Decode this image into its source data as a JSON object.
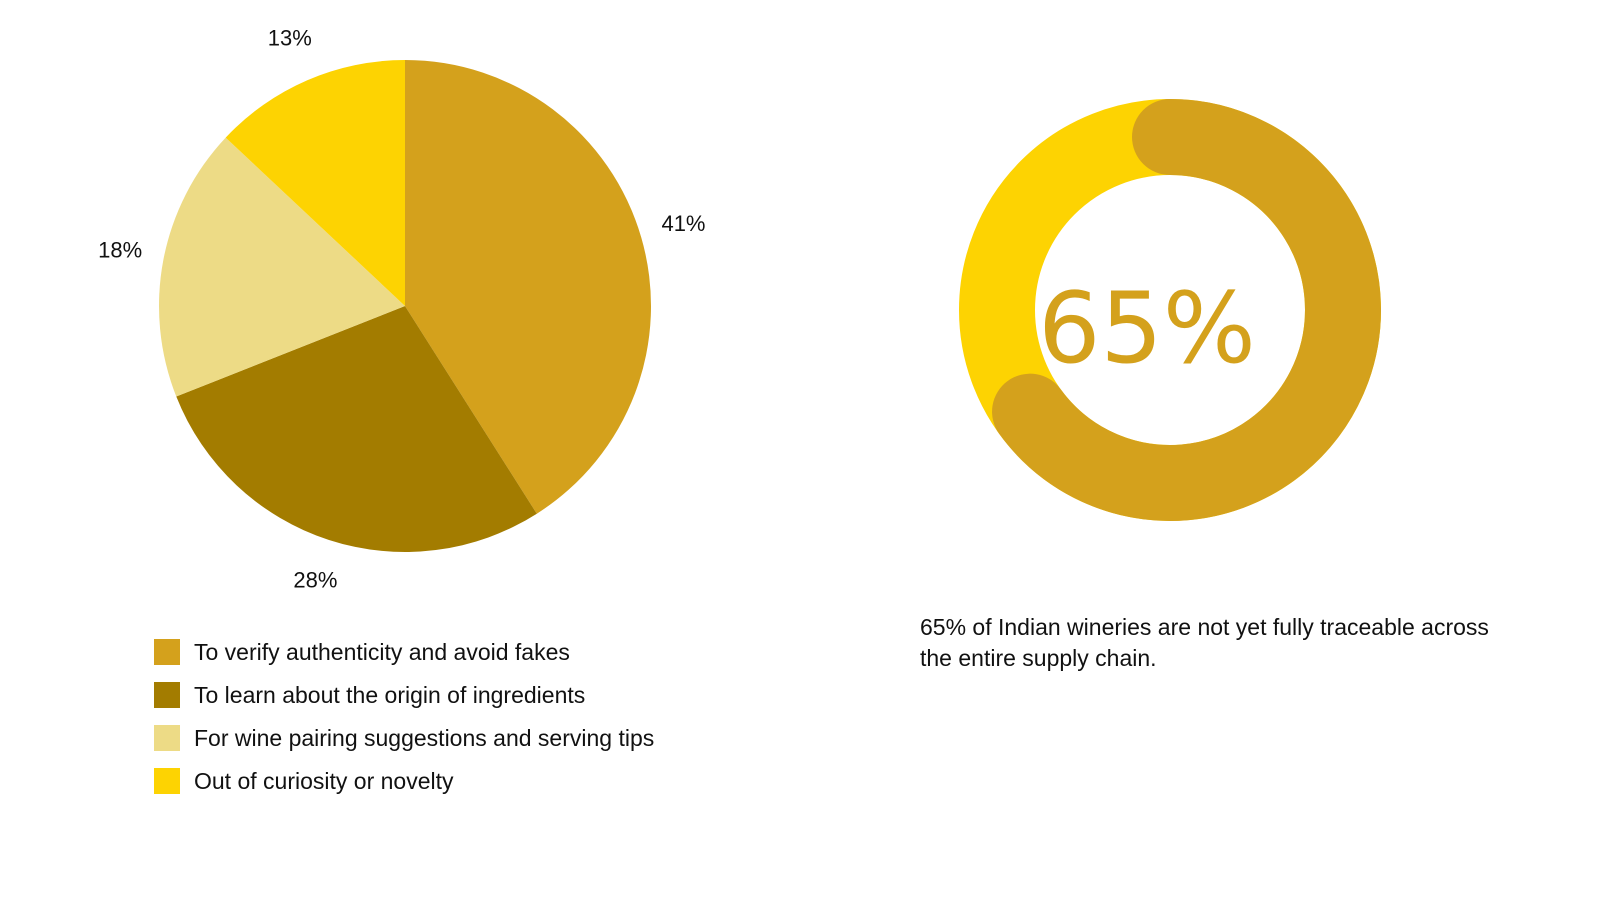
{
  "chart_data": [
    {
      "type": "pie",
      "categories": [
        "To verify authenticity and avoid fakes",
        "To learn about the origin of ingredients",
        "For wine pairing suggestions and serving tips",
        "Out of curiosity or novelty"
      ],
      "values": [
        41,
        28,
        18,
        13
      ],
      "data_labels": [
        "41%",
        "28%",
        "18%",
        "13%"
      ],
      "colors": [
        "#D4A11C",
        "#A37C00",
        "#EDDB86",
        "#FDD302"
      ],
      "legend_position": "bottom-left",
      "start_angle_degrees": 0,
      "direction": "clockwise"
    },
    {
      "type": "pie",
      "subtype": "donut",
      "categories": [
        "Not yet fully traceable",
        "Fully traceable"
      ],
      "values": [
        65,
        35
      ],
      "center_label": "65%",
      "caption": "65% of Indian wineries are not yet fully traceable across the entire supply chain.",
      "colors": {
        "highlight": "#D4A11C",
        "track": "#FDD302"
      }
    }
  ]
}
